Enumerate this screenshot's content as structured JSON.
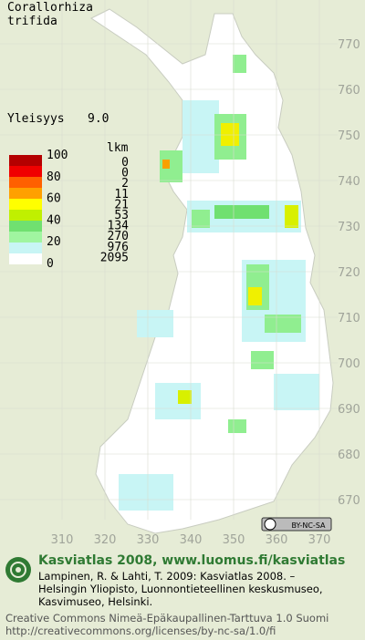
{
  "map": {
    "title": [
      "Corallorhiza",
      "trifida"
    ],
    "index_label": "Yleisyys",
    "index_value": "9.0",
    "legend": {
      "scale": [
        100,
        80,
        60,
        40,
        20,
        0
      ],
      "count_header": "lkm",
      "counts": [
        0,
        0,
        2,
        11,
        21,
        53,
        134,
        270,
        976,
        2095
      ]
    },
    "y_labels": [
      770,
      760,
      750,
      740,
      730,
      720,
      710,
      700,
      690,
      680,
      670
    ],
    "x_labels": [
      310,
      320,
      330,
      340,
      350,
      360,
      370
    ]
  },
  "license_badge": "BY-NC-SA",
  "footer": {
    "heading": "Kasviatlas 2008, www.luomus.fi/kasviatlas",
    "citation": [
      "Lampinen, R. & Lahti, T. 2009: Kasviatlas 2008. –",
      "Helsingin Yliopisto, Luonnontieteellinen keskusmuseo,",
      "Kasvimuseo, Helsinki."
    ],
    "license": [
      "Creative Commons Nimeä-Epäkaupallinen-Tarttuva 1.0 Suomi",
      "http://creativecommons.org/licenses/by-nc-sa/1.0/fi"
    ]
  }
}
